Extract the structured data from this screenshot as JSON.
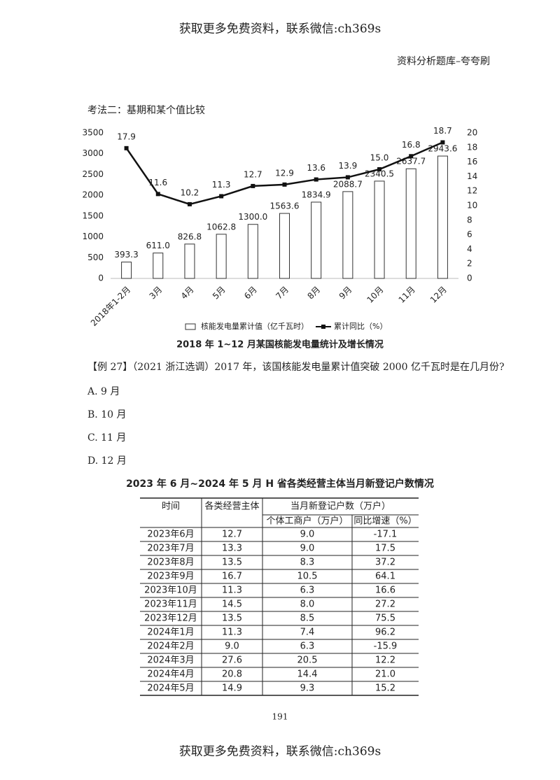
{
  "header": {
    "banner": "获取更多免费资料，联系微信:ch369s",
    "book": "资料分析题库–夸夸刷"
  },
  "section_title": "考法二：基期和某个值比较",
  "chart_data": {
    "type": "combo",
    "title": "2018 年 1~12 月某国核能发电量统计及增长情况",
    "categories": [
      "2018年1-2月",
      "3月",
      "4月",
      "5月",
      "6月",
      "7月",
      "8月",
      "9月",
      "10月",
      "11月",
      "12月"
    ],
    "series": [
      {
        "name": "核能发电量累计值（亿千瓦时）",
        "type": "bar",
        "color": "#ffffff",
        "values": [
          393.3,
          611,
          826.8,
          1062.8,
          1300,
          1563.6,
          1834.9,
          2088.7,
          2340.5,
          2637.7,
          2943.6
        ],
        "value_labels": [
          "393.3",
          "611.0",
          "826.8",
          "1062.8",
          "1300.0",
          "1563.6",
          "1834.9",
          "2088.7",
          "2340.5",
          "2637.7",
          "2943.6"
        ]
      },
      {
        "name": "累计同比（%）",
        "type": "line",
        "axis": "y2",
        "color": "#111111",
        "values": [
          17.9,
          11.6,
          10.2,
          11.3,
          12.7,
          12.9,
          13.6,
          13.9,
          15,
          16.8,
          18.7
        ],
        "value_labels": [
          "17.9",
          "11.6",
          "10.2",
          "11.3",
          "12.7",
          "12.9",
          "13.6",
          "13.9",
          "15.0",
          "16.8",
          "18.7"
        ]
      }
    ],
    "ylim": [
      0,
      3500
    ],
    "yticks": [
      0,
      500,
      1000,
      1500,
      2000,
      2500,
      3000,
      3500
    ],
    "y2lim": [
      0,
      20
    ],
    "y2ticks": [
      0,
      2,
      4,
      6,
      8,
      10,
      12,
      14,
      16,
      18,
      20
    ],
    "grid": false,
    "legend": "bottom"
  },
  "question": "【例 27】（2021 浙江选调）2017 年，该国核能发电量累计值突破 2000 亿千瓦时是在几月份?",
  "options": [
    "A. 9 月",
    "B. 10 月",
    "C. 11 月",
    "D. 12 月"
  ],
  "table": {
    "title": "2023 年 6 月~2024 年 5 月 H 省各类经营主体当月新登记户数情况",
    "header": [
      "时间",
      "各类经营主体",
      "当月新登记户数（万户）"
    ],
    "subheader": [
      "个体工商户（万户）",
      "同比增速（%）"
    ],
    "rows": [
      [
        "2023年6月",
        "12.7",
        "9.0",
        "-17.1"
      ],
      [
        "2023年7月",
        "13.3",
        "9.0",
        "17.5"
      ],
      [
        "2023年8月",
        "13.5",
        "8.3",
        "37.2"
      ],
      [
        "2023年9月",
        "16.7",
        "10.5",
        "64.1"
      ],
      [
        "2023年10月",
        "11.3",
        "6.3",
        "16.6"
      ],
      [
        "2023年11月",
        "14.5",
        "8.0",
        "27.2"
      ],
      [
        "2023年12月",
        "13.5",
        "8.5",
        "75.5"
      ],
      [
        "2024年1月",
        "11.3",
        "7.4",
        "96.2"
      ],
      [
        "2024年2月",
        "9.0",
        "6.3",
        "-15.9"
      ],
      [
        "2024年3月",
        "27.6",
        "20.5",
        "12.2"
      ],
      [
        "2024年4月",
        "20.8",
        "14.4",
        "21.0"
      ],
      [
        "2024年5月",
        "14.9",
        "9.3",
        "15.2"
      ]
    ]
  },
  "page_number": "191",
  "footer": "获取更多免费资料，联系微信:ch369s"
}
